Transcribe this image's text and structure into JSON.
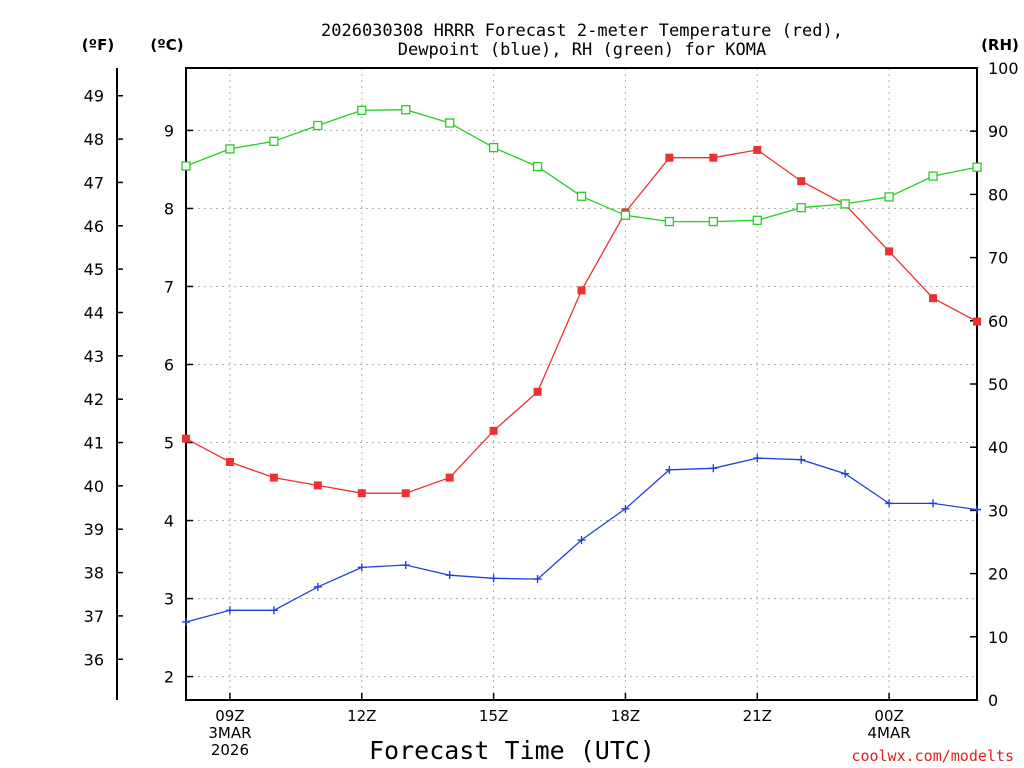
{
  "chart_data": {
    "type": "line",
    "title_lines": [
      "2026030308 HRRR Forecast 2-meter Temperature (red),",
      "Dewpoint (blue), RH (green) for KOMA"
    ],
    "xlabel": "Forecast Time (UTC)",
    "credit": "coolwx.com/modelts",
    "grid": true,
    "x_hours": [
      8,
      9,
      10,
      11,
      12,
      13,
      14,
      15,
      16,
      17,
      18,
      19,
      20,
      21,
      22,
      23,
      24,
      25,
      26
    ],
    "x_ticks": [
      {
        "hour": 9,
        "lines": [
          "09Z",
          "3MAR",
          "2026"
        ]
      },
      {
        "hour": 12,
        "lines": [
          "12Z"
        ]
      },
      {
        "hour": 15,
        "lines": [
          "15Z"
        ]
      },
      {
        "hour": 18,
        "lines": [
          "18Z"
        ]
      },
      {
        "hour": 21,
        "lines": [
          "21Z"
        ]
      },
      {
        "hour": 24,
        "lines": [
          "00Z",
          "4MAR"
        ]
      }
    ],
    "axes": {
      "celsius": {
        "label": "(ºC)",
        "ylim": [
          1.7,
          9.8
        ],
        "ticks": [
          "2",
          "3",
          "4",
          "5",
          "6",
          "7",
          "8",
          "9"
        ]
      },
      "fahrenheit": {
        "label": "(ºF)",
        "ylim": [
          35.06,
          49.64
        ],
        "ticks": [
          "36",
          "37",
          "38",
          "39",
          "40",
          "41",
          "42",
          "43",
          "44",
          "45",
          "46",
          "47",
          "48",
          "49"
        ]
      },
      "rh": {
        "label": "(RH)",
        "ylim": [
          0,
          100
        ],
        "ticks": [
          "0",
          "10",
          "20",
          "30",
          "40",
          "50",
          "60",
          "70",
          "80",
          "90",
          "100"
        ]
      }
    },
    "series": [
      {
        "name": "2-meter Temperature",
        "unit": "C",
        "color": "#ee3030",
        "marker": "filled-square",
        "values": [
          5.05,
          4.75,
          4.55,
          4.45,
          4.35,
          4.35,
          4.55,
          5.15,
          5.65,
          6.95,
          7.95,
          8.65,
          8.65,
          8.75,
          8.35,
          8.05,
          7.45,
          6.85,
          6.55
        ]
      },
      {
        "name": "Dewpoint",
        "unit": "C",
        "color": "#2040e0",
        "marker": "plus",
        "values": [
          2.7,
          2.85,
          2.85,
          3.15,
          3.4,
          3.43,
          3.3,
          3.26,
          3.25,
          3.75,
          4.15,
          4.65,
          4.67,
          4.8,
          4.78,
          4.6,
          4.22,
          4.22,
          4.14
        ]
      },
      {
        "name": "Relative Humidity",
        "unit": "%",
        "color": "#20d020",
        "marker": "open-square",
        "values": [
          84.5,
          87.2,
          88.4,
          90.9,
          93.3,
          93.4,
          91.3,
          87.4,
          84.4,
          79.7,
          76.7,
          75.7,
          75.7,
          75.9,
          77.9,
          78.5,
          79.6,
          82.9,
          84.3
        ]
      }
    ]
  }
}
